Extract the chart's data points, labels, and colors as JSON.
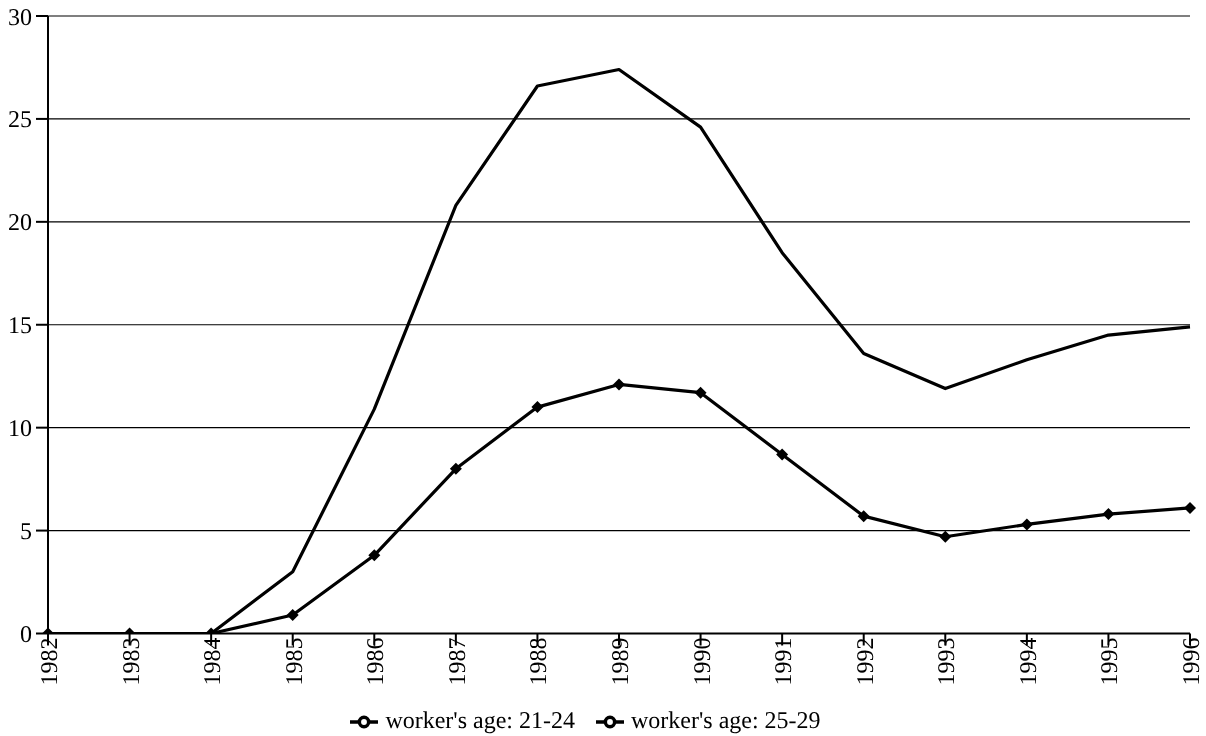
{
  "chart_data": {
    "type": "line",
    "categories": [
      "1982",
      "1983",
      "1984",
      "1985",
      "1986",
      "1987",
      "1988",
      "1989",
      "1990",
      "1991",
      "1992",
      "1993",
      "1994",
      "1995",
      "1996"
    ],
    "series": [
      {
        "name": "worker's age: 21-24",
        "color": "#000000",
        "marker": "none",
        "values": [
          0,
          0,
          0,
          3.0,
          10.9,
          20.8,
          26.6,
          27.4,
          24.6,
          18.5,
          13.6,
          11.9,
          13.3,
          14.5,
          14.9
        ]
      },
      {
        "name": "worker's age: 25-29",
        "color": "#000000",
        "marker": "diamond",
        "values": [
          0,
          0,
          0,
          0.9,
          3.8,
          8.0,
          11.0,
          12.1,
          11.7,
          8.7,
          5.7,
          4.7,
          5.3,
          5.8,
          6.1
        ]
      }
    ],
    "ylim": [
      0,
      30
    ],
    "yticks": [
      0,
      5,
      10,
      15,
      20,
      25,
      30
    ],
    "grid": "y",
    "legend": "bottom"
  }
}
